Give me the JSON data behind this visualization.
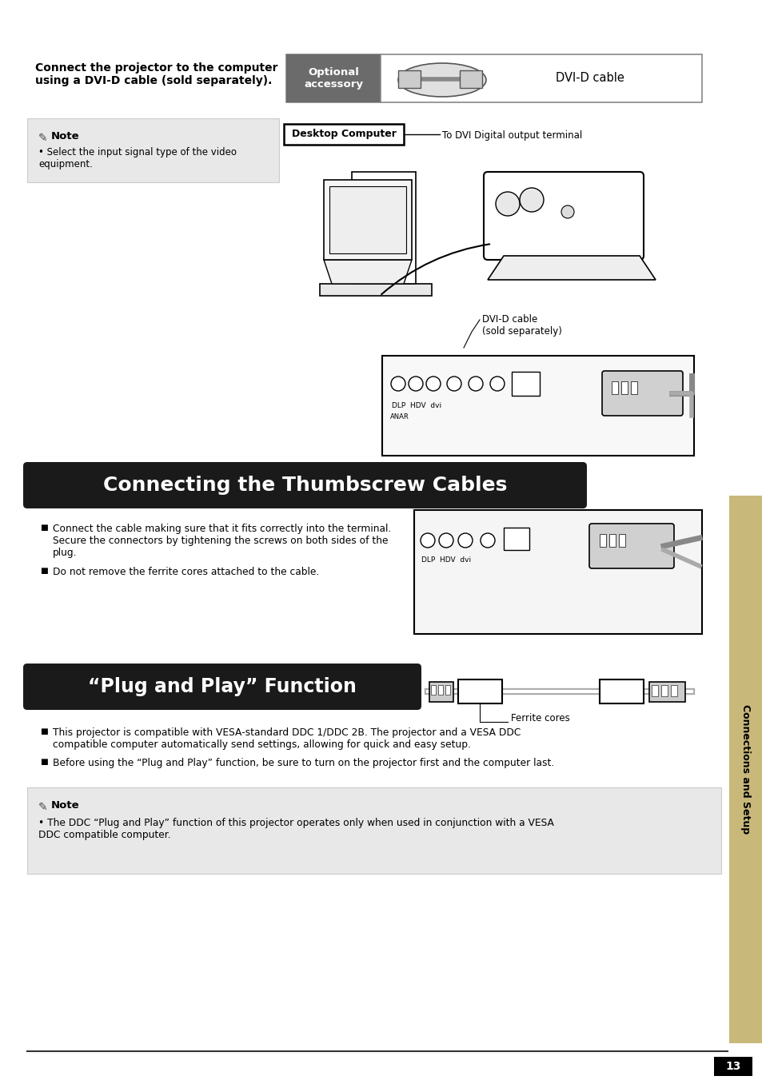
{
  "bg_color": "#ffffff",
  "top_heading": "Connect the projector to the computer\nusing a DVI-D cable (sold separately).",
  "optional_label": "Optional\naccessory",
  "optional_bg": "#6b6b6b",
  "optional_text_color": "#ffffff",
  "optional_item": "DVI-D cable",
  "note1_title": "Note",
  "note1_bullet": "Select the input signal type of the video\nequipment.",
  "note1_bg": "#e8e8e8",
  "desktop_label": "Desktop Computer",
  "desktop_line_text": "To DVI Digital output terminal",
  "dvi_label": "DVI-D cable\n(sold separately)",
  "section1_title": "Connecting the Thumbscrew Cables",
  "section1_bg": "#1a1a1a",
  "section1_color": "#ffffff",
  "section1_bullets": [
    "Connect the cable making sure that it fits correctly into the terminal.\nSecure the connectors by tightening the screws on both sides of the\nplug.",
    "Do not remove the ferrite cores attached to the cable."
  ],
  "section2_title": "“Plug and Play” Function",
  "section2_bg": "#1a1a1a",
  "section2_color": "#ffffff",
  "ferrite_label": "Ferrite cores",
  "section2_bullets": [
    "This projector is compatible with VESA-standard DDC 1/DDC 2B. The projector and a VESA DDC\ncompatible computer automatically send settings, allowing for quick and easy setup.",
    "Before using the “Plug and Play” function, be sure to turn on the projector first and the computer last."
  ],
  "note2_title": "Note",
  "note2_bullet": "The DDC “Plug and Play” function of this projector operates only when used in conjunction with a VESA\nDDC compatible computer.",
  "note2_bg": "#e8e8e8",
  "sidebar_text": "Connections and Setup",
  "sidebar_bg": "#c8b87a",
  "page_number": "13"
}
